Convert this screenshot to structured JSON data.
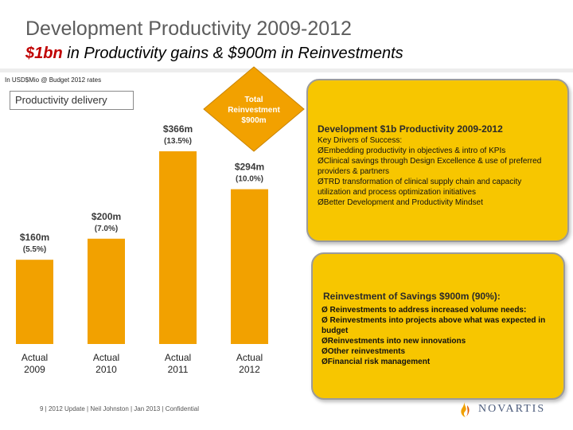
{
  "header": {
    "title": "Development Productivity 2009-2012",
    "subtitle_highlight": "$1bn",
    "subtitle_rest": " in Productivity gains & $900m in Reinvestments",
    "units_note": "In USD$Mio @ Budget 2012 rates"
  },
  "delivery_label": "Productivity delivery",
  "reinvestment_callout": {
    "line1": "Total",
    "line2": "Reinvestment",
    "line3": "$900m"
  },
  "chart_data": {
    "type": "bar",
    "title": "Productivity delivery",
    "categories": [
      "Actual 2009",
      "Actual 2010",
      "Actual 2011",
      "Actual 2012"
    ],
    "category_lines": [
      [
        "Actual",
        "2009"
      ],
      [
        "Actual",
        "2010"
      ],
      [
        "Actual",
        "2011"
      ],
      [
        "Actual",
        "2012"
      ]
    ],
    "values": [
      160,
      200,
      366,
      294
    ],
    "value_labels": [
      "$160m",
      "$200m",
      "$366m",
      "$294m"
    ],
    "percent_labels": [
      "(5.5%)",
      "(7.0%)",
      "(13.5%)",
      "(10.0%)"
    ],
    "ylim": [
      0,
      366
    ],
    "grid": false,
    "colors": {
      "bar": "#f2a100",
      "label": "#3a3a3a"
    }
  },
  "panels": {
    "success": {
      "heading": "Development $1b Productivity 2009-2012",
      "lines": [
        "Key Drivers of Success:",
        "ØEmbedding productivity in objectives & intro of KPIs",
        "ØClinical savings through Design Excellence & use of preferred providers & partners",
        "ØTRD transformation of clinical supply chain and capacity utilization and process optimization initiatives",
        "ØBetter Development and Productivity Mindset"
      ]
    },
    "reinvestment": {
      "heading": "Reinvestment of Savings $900m (90%):",
      "lines": [
        "Ø Reinvestments to address increased volume needs:",
        "Ø Reinvestments into projects above what was expected in budget",
        "ØReinvestments into new innovations",
        "ØOther reinvestments",
        "ØFinancial risk management"
      ]
    }
  },
  "footer": {
    "text": "9 | 2012 Update | Neil Johnston | Jan 2013 | Confidential"
  },
  "logo": {
    "word": "NOVARTIS"
  },
  "colors": {
    "panel": "#f7c600",
    "callout": "#f2a100",
    "title": "#5c5c5c",
    "highlight": "#c00000"
  }
}
